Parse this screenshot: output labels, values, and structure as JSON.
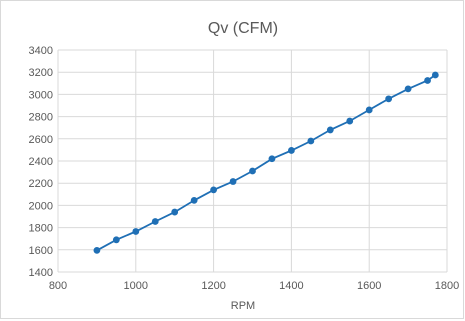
{
  "chart_data": {
    "type": "line",
    "title": "Qv (CFM)",
    "xlabel": "RPM",
    "ylabel": "",
    "xlim": [
      800,
      1800
    ],
    "ylim": [
      1400,
      3400
    ],
    "xticks": [
      800,
      1000,
      1200,
      1400,
      1600,
      1800
    ],
    "yticks": [
      1400,
      1600,
      1800,
      2000,
      2200,
      2400,
      2600,
      2800,
      3000,
      3200,
      3400
    ],
    "grid": true,
    "legend": "none",
    "series": [
      {
        "color": "#1f6fb5",
        "x": [
          900,
          950,
          1000,
          1050,
          1100,
          1150,
          1200,
          1250,
          1300,
          1350,
          1400,
          1450,
          1500,
          1550,
          1600,
          1650,
          1700,
          1750,
          1770
        ],
        "y": [
          1595,
          1690,
          1765,
          1855,
          1940,
          2045,
          2140,
          2215,
          2310,
          2420,
          2495,
          2580,
          2680,
          2760,
          2860,
          2960,
          3050,
          3125,
          3175
        ]
      }
    ]
  }
}
